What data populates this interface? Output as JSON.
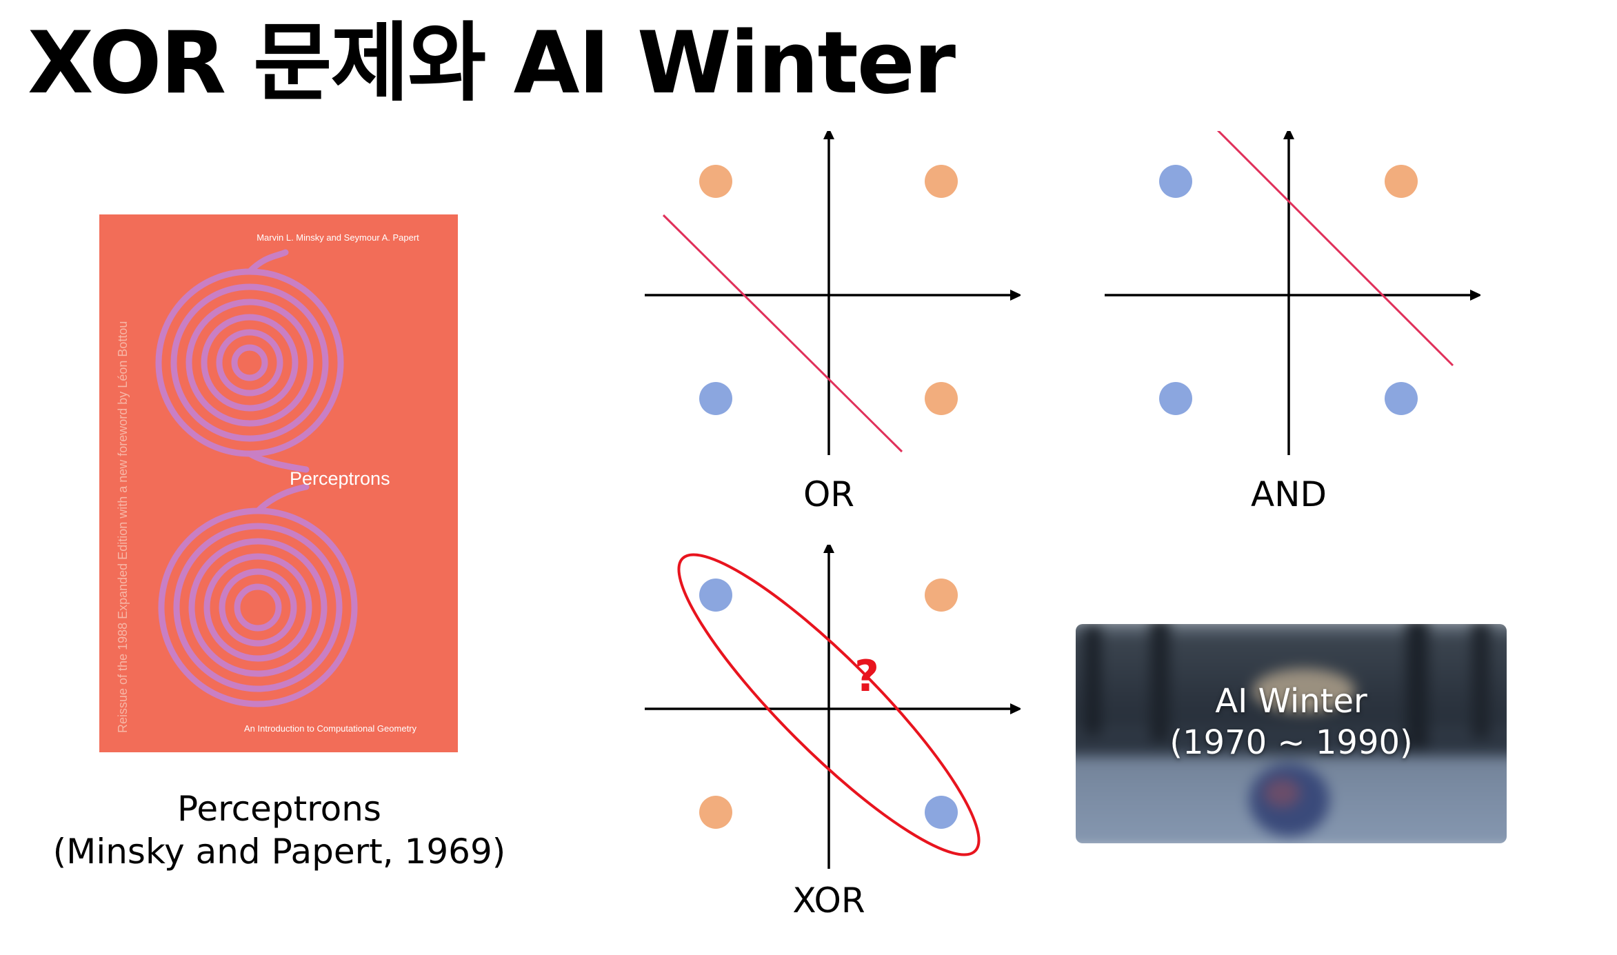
{
  "title": "XOR 문제와 AI Winter",
  "book": {
    "authors": "Marvin L. Minsky and Seymour A. Papert",
    "spine": "Reissue of the 1988 Expanded Edition with a new foreword by Léon Bottou",
    "cover_title": "Perceptrons",
    "subtitle": "An Introduction to Computational Geometry",
    "caption_line1": "Perceptrons",
    "caption_line2": "(Minsky and Papert, 1969)",
    "colors": {
      "cover": "#f26d58",
      "spiral": "#c97fc4"
    }
  },
  "plots": {
    "or": {
      "label": "OR"
    },
    "and": {
      "label": "AND"
    },
    "xor": {
      "label": "XOR",
      "question_mark": "?"
    }
  },
  "colors": {
    "orange_point": "#f2ad7d",
    "blue_point": "#8ba6df",
    "separator": "#e0305a",
    "xor_ellipse": "#e8141e"
  },
  "ai_winter": {
    "line1": "AI Winter",
    "line2": "(1970 ~ 1990)"
  }
}
